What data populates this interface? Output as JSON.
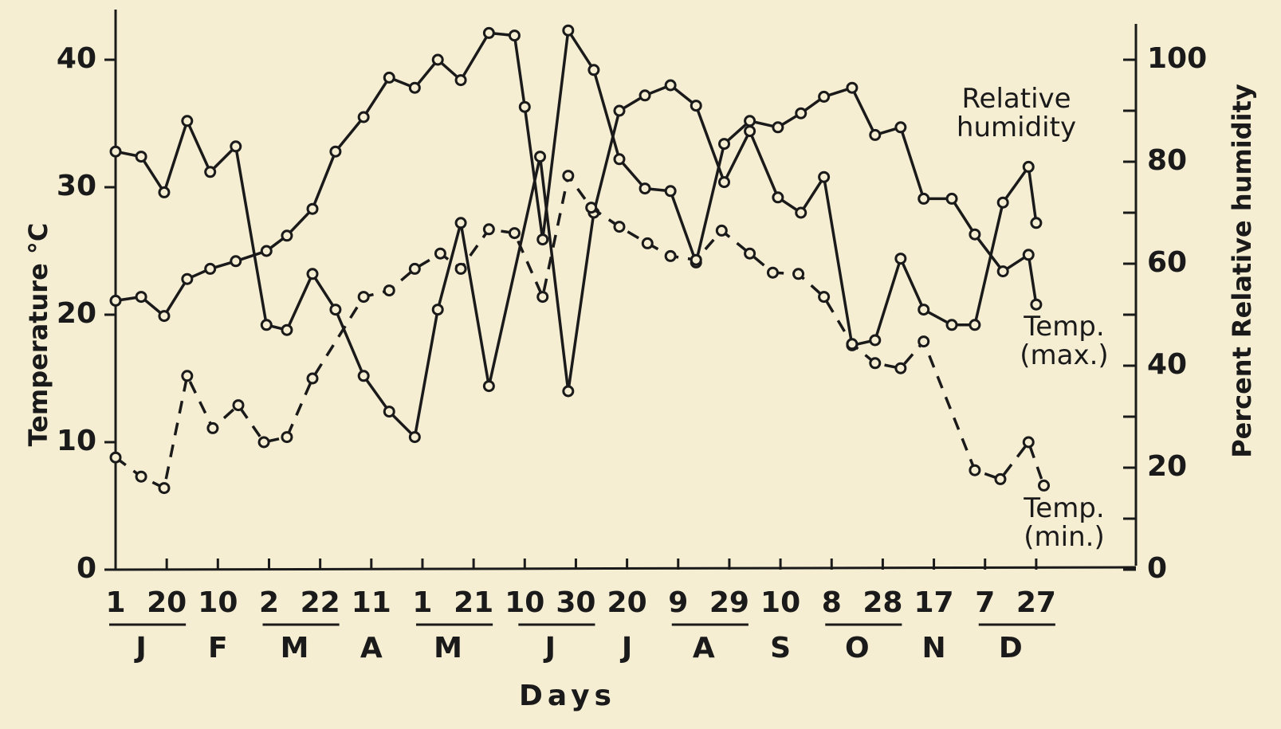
{
  "chart_data": {
    "type": "line",
    "y_label": "Temperature °C",
    "y2_label": "Percent Relative humidity",
    "x_label": "Days",
    "months": [
      "J",
      "F",
      "M",
      "A",
      "M",
      "J",
      "J",
      "A",
      "S",
      "O",
      "N",
      "D"
    ],
    "xlim": [
      0,
      399
    ],
    "xticks": [
      {
        "value": 0,
        "label": "1"
      },
      20,
      {
        "value": 40,
        "label": "10"
      },
      {
        "value": 60,
        "label": "2"
      },
      {
        "value": 80,
        "label": "22"
      },
      {
        "value": 100,
        "label": "11"
      },
      {
        "value": 120,
        "label": "1"
      },
      {
        "value": 140,
        "label": "21"
      },
      {
        "value": 160,
        "label": "10"
      },
      {
        "value": 180,
        "label": "30"
      },
      {
        "value": 200,
        "label": "20"
      },
      {
        "value": 220,
        "label": "9"
      },
      {
        "value": 240,
        "label": "29"
      },
      {
        "value": 260,
        "label": "10"
      },
      {
        "value": 280,
        "label": "8"
      },
      {
        "value": 300,
        "label": "28"
      },
      {
        "value": 320,
        "label": "17"
      },
      {
        "value": 340,
        "label": "7"
      },
      {
        "value": 360,
        "label": "27"
      }
    ],
    "ylim": [
      0,
      44
    ],
    "yticks": [
      0,
      10,
      20,
      30,
      40
    ],
    "y2lim": [
      0,
      110
    ],
    "y2ticks": [
      0,
      20,
      40,
      60,
      80,
      100
    ],
    "series": [
      {
        "name": "Relative humidity",
        "color": "#1a1a1a",
        "axis": "y2",
        "line_style": "solid",
        "x": [
          0,
          10,
          19,
          28,
          37,
          47,
          59,
          67,
          77,
          86,
          97,
          107,
          117,
          126,
          135,
          146,
          166,
          177,
          187,
          197,
          207,
          217,
          227,
          238,
          248,
          259,
          268,
          277,
          288,
          297,
          307,
          316,
          327,
          336,
          347,
          357,
          360
        ],
        "values": [
          82,
          81,
          74,
          88,
          78,
          83,
          48,
          47,
          58,
          51,
          38,
          31,
          26,
          51,
          68,
          36,
          81,
          35,
          70,
          90,
          93,
          95,
          91,
          76,
          86,
          73,
          70,
          77,
          44,
          45,
          61,
          51,
          48,
          48,
          72,
          79,
          68
        ]
      },
      {
        "name": "Temp. (max.)",
        "color": "#1a1a1a",
        "line_style": "solid",
        "x": [
          0,
          10,
          19,
          28,
          37,
          47,
          59,
          67,
          77,
          86,
          97,
          107,
          117,
          126,
          135,
          146,
          156,
          160,
          167,
          177,
          187,
          197,
          207,
          217,
          227,
          238,
          248,
          259,
          268,
          277,
          288,
          297,
          307,
          316,
          327,
          336,
          347,
          357,
          360
        ],
        "values": [
          21.1,
          21.4,
          19.9,
          22.8,
          23.6,
          24.2,
          25,
          26.2,
          28.3,
          32.8,
          35.5,
          38.6,
          37.8,
          40,
          38.4,
          42.1,
          41.9,
          36.3,
          25.9,
          42.3,
          39.2,
          32.2,
          29.9,
          29.7,
          24.1,
          33.4,
          35.2,
          34.7,
          35.8,
          37.1,
          37.8,
          34.1,
          34.7,
          29.1,
          29.1,
          26.3,
          23.4,
          24.7,
          20.8
        ]
      },
      {
        "name": "Temp. (min.)",
        "color": "#1a1a1a",
        "line_style": "dashed",
        "x": [
          0,
          10,
          19,
          28,
          38,
          48,
          58,
          67,
          77,
          97,
          107,
          117,
          127,
          135,
          146,
          156,
          167,
          177,
          186,
          197,
          208,
          217,
          227,
          237,
          248,
          257,
          267,
          277,
          288,
          297,
          307,
          316,
          336,
          346,
          357,
          363
        ],
        "values": [
          8.8,
          7.3,
          6.4,
          15.2,
          11.1,
          12.9,
          10,
          10.4,
          15,
          21.4,
          21.9,
          23.6,
          24.8,
          23.6,
          26.7,
          26.4,
          21.4,
          30.9,
          28.4,
          26.9,
          25.6,
          24.6,
          24.3,
          26.6,
          24.8,
          23.3,
          23.2,
          21.4,
          17.7,
          16.2,
          15.8,
          17.9,
          7.8,
          7.1,
          10,
          6.6
        ]
      }
    ]
  }
}
